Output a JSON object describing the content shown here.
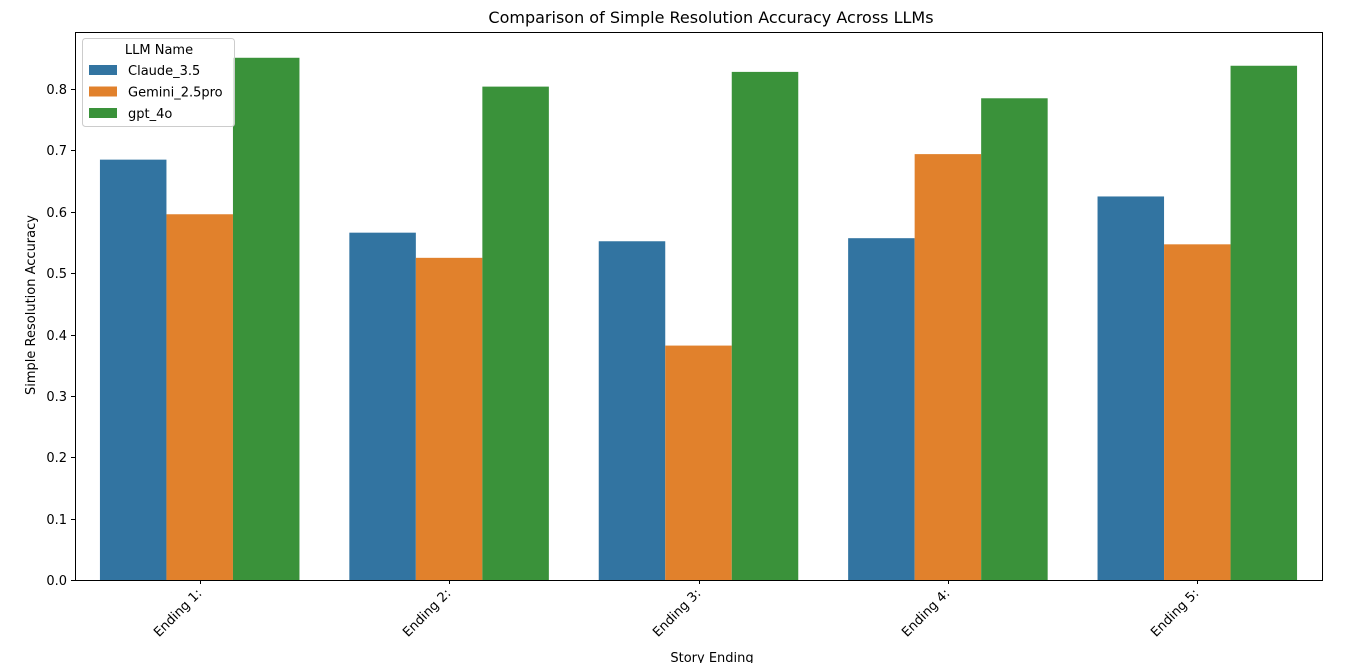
{
  "chart_data": {
    "type": "bar",
    "title": "Comparison of Simple Resolution Accuracy Across LLMs",
    "xlabel": "Story Ending",
    "ylabel": "Simple Resolution Accuracy",
    "categories": [
      "Ending 1:",
      "Ending 2:",
      "Ending 3:",
      "Ending 4:",
      "Ending 5:"
    ],
    "ylim": [
      0,
      0.893
    ],
    "yticks": [
      0.0,
      0.1,
      0.2,
      0.3,
      0.4,
      0.5,
      0.6,
      0.7,
      0.8
    ],
    "ytick_labels": [
      "0.0",
      "0.1",
      "0.2",
      "0.3",
      "0.4",
      "0.5",
      "0.6",
      "0.7",
      "0.8"
    ],
    "grid": false,
    "legend": {
      "title": "LLM Name",
      "position": "top-left"
    },
    "series": [
      {
        "name": "Claude_3.5",
        "color": "#3274a1",
        "values": [
          0.685,
          0.566,
          0.552,
          0.557,
          0.625
        ]
      },
      {
        "name": "Gemini_2.5pro",
        "color": "#e1812c",
        "values": [
          0.596,
          0.525,
          0.382,
          0.694,
          0.547
        ]
      },
      {
        "name": "gpt_4o",
        "color": "#3a923a",
        "values": [
          0.851,
          0.804,
          0.828,
          0.785,
          0.838
        ]
      }
    ]
  }
}
